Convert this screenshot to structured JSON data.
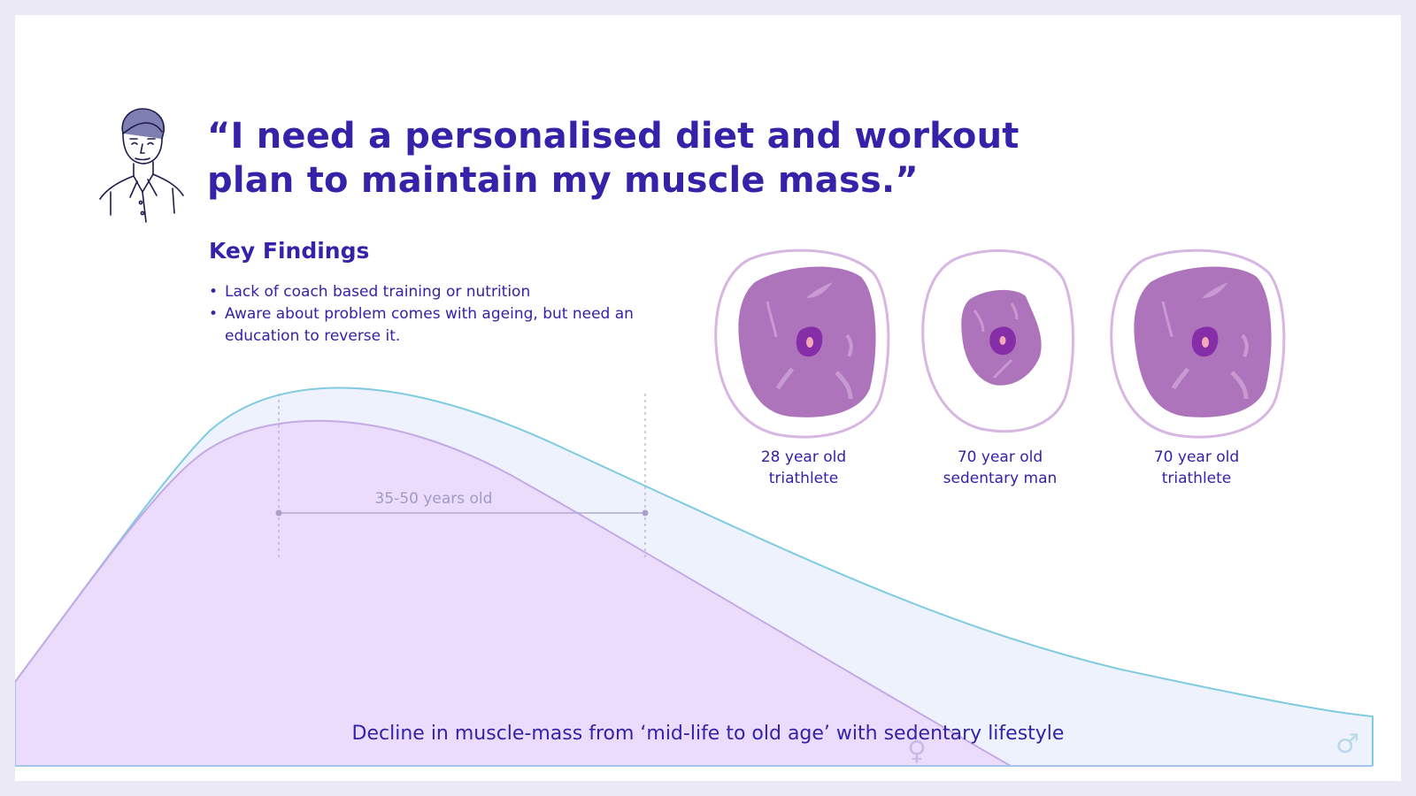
{
  "quote": {
    "line1": "“I need a personalised diet and workout",
    "line2": "plan to maintain my muscle mass.”"
  },
  "key_findings": {
    "title": "Key Findings",
    "items": [
      {
        "bullet": "•",
        "text": "Lack of coach based training or nutrition"
      },
      {
        "bullet": "•",
        "text": "Aware about problem comes with ageing, but need an education to reverse it."
      }
    ]
  },
  "chart": {
    "range_label": "35-50 years old",
    "caption": "Decline in muscle-mass from ‘mid-life to old age’ with sedentary lifestyle",
    "symbols": {
      "female": "♀",
      "male": "♂"
    },
    "colors": {
      "male_line": "#7fcbe0",
      "male_fill": "#eef2fd",
      "female_line": "#c3a9e6",
      "female_fill": "#eadcfa"
    }
  },
  "cells": [
    {
      "line1": "28 year old",
      "line2": "triathlete"
    },
    {
      "line1": "70 year old",
      "line2": "sedentary man"
    },
    {
      "line1": "70 year old",
      "line2": "triathlete"
    }
  ],
  "colors": {
    "accent": "#3422a8",
    "cell_fill": "#ae74bb",
    "cell_outline": "#d7b6e1",
    "nucleus": "#862ea8"
  }
}
